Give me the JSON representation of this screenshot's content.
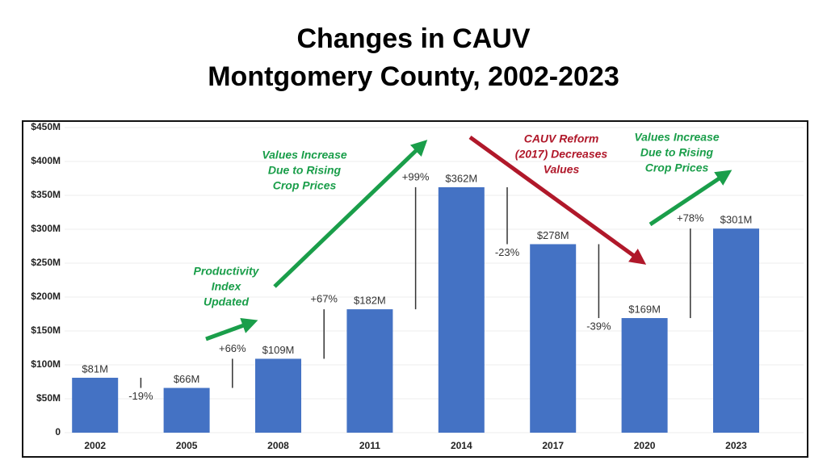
{
  "chart_data": {
    "type": "bar",
    "title": [
      "Changes in CAUV",
      "Montgomery County, 2002-2023"
    ],
    "categories": [
      "2002",
      "2005",
      "2008",
      "2011",
      "2014",
      "2017",
      "2020",
      "2023"
    ],
    "values": [
      81,
      66,
      109,
      182,
      362,
      278,
      169,
      301
    ],
    "value_labels": [
      "$81M",
      "$66M",
      "$109M",
      "$182M",
      "$362M",
      "$278M",
      "$169M",
      "$301M"
    ],
    "color": "#4472c4",
    "change_labels": [
      "-19%",
      "+66%",
      "+67%",
      "+99%",
      "-23%",
      "-39%",
      "+78%"
    ],
    "ylim": [
      0,
      450
    ],
    "yticks": [
      0,
      {
        "value": 50,
        "label": "$50M"
      },
      {
        "value": 100,
        "label": "$100M"
      },
      {
        "value": 150,
        "label": "$150M"
      },
      {
        "value": 200,
        "label": "$200M"
      },
      {
        "value": 250,
        "label": "$250M"
      },
      {
        "value": 300,
        "label": "$300M"
      },
      {
        "value": 350,
        "label": "$350M"
      },
      {
        "value": 400,
        "label": "$400M"
      },
      {
        "value": 450,
        "label": "$450M"
      }
    ],
    "grid": true,
    "annotations": [
      {
        "lines": [
          "Productivity",
          "Index",
          "Updated"
        ],
        "color": "#1a9e4a"
      },
      {
        "lines": [
          "Values Increase",
          "Due to Rising",
          "Crop Prices"
        ],
        "color": "#1a9e4a"
      },
      {
        "lines": [
          "CAUV Reform",
          "(2017) Decreases",
          "Values"
        ],
        "color": "#b0182a"
      },
      {
        "lines": [
          "Values Increase",
          "Due to Rising",
          "Crop Prices"
        ],
        "color": "#1a9e4a"
      }
    ]
  }
}
